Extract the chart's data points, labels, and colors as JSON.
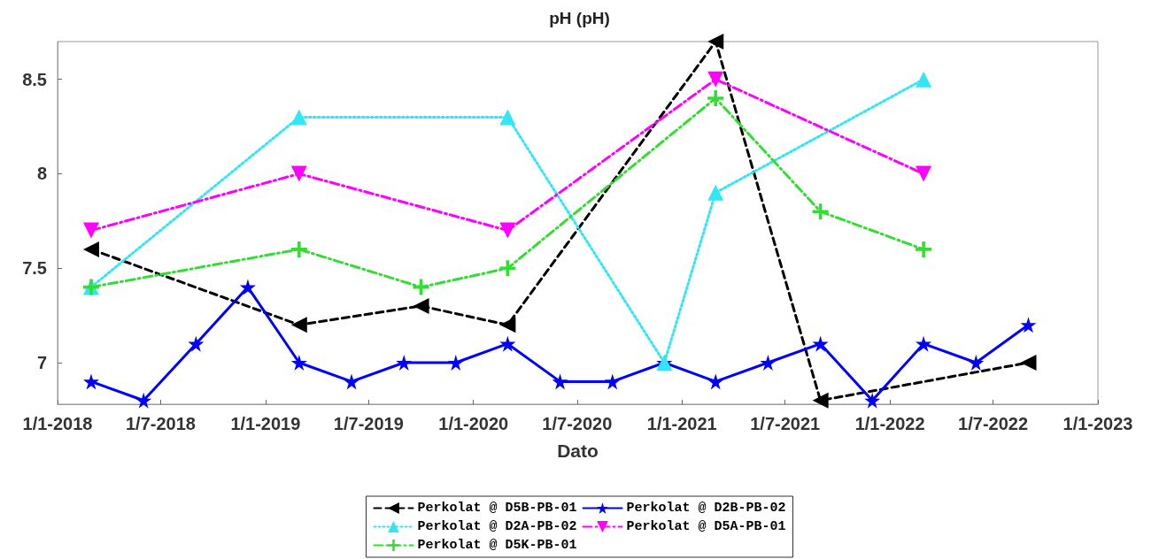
{
  "chart_data": {
    "type": "line",
    "title": "pH (pH)",
    "xlabel": "Dato",
    "xlim": [
      "2018-01-01",
      "2023-01-01"
    ],
    "xticks": [
      {
        "value": "2018-01-01",
        "label": "1/1-2018"
      },
      {
        "value": "2018-07-01",
        "label": "1/7-2018"
      },
      {
        "value": "2019-01-01",
        "label": "1/1-2019"
      },
      {
        "value": "2019-07-01",
        "label": "1/7-2019"
      },
      {
        "value": "2020-01-01",
        "label": "1/1-2020"
      },
      {
        "value": "2020-07-01",
        "label": "1/7-2020"
      },
      {
        "value": "2021-01-01",
        "label": "1/1-2021"
      },
      {
        "value": "2021-07-01",
        "label": "1/7-2021"
      },
      {
        "value": "2022-01-01",
        "label": "1/1-2022"
      },
      {
        "value": "2022-07-01",
        "label": "1/7-2022"
      },
      {
        "value": "2023-01-01",
        "label": "1/1-2023"
      }
    ],
    "ylim": [
      6.78,
      8.7
    ],
    "yticks": [
      7,
      7.5,
      8,
      8.5
    ],
    "grid": false,
    "legend": "bottom",
    "series": [
      {
        "name": "Perkolat @ D5B-PB-01",
        "color": "#000000",
        "marker": "triangle-left",
        "line_style": "dashed",
        "x": [
          "2018-03-01",
          "2019-03-01",
          "2019-10-01",
          "2020-03-01",
          "2021-03-01",
          "2021-09-01",
          "2022-09-01"
        ],
        "values": [
          7.6,
          7.2,
          7.3,
          7.2,
          8.7,
          6.8,
          7.0
        ]
      },
      {
        "name": "Perkolat @ D2B-PB-02",
        "color": "#0000ff",
        "marker": "star",
        "line_style": "solid",
        "x": [
          "2018-03-01",
          "2018-06-01",
          "2018-09-01",
          "2018-12-01",
          "2019-03-01",
          "2019-06-01",
          "2019-09-01",
          "2019-12-01",
          "2020-03-01",
          "2020-06-01",
          "2020-09-01",
          "2020-12-01",
          "2021-03-01",
          "2021-06-01",
          "2021-09-01",
          "2021-12-01",
          "2022-03-01",
          "2022-06-01",
          "2022-09-01"
        ],
        "values": [
          6.9,
          6.8,
          7.1,
          7.4,
          7.0,
          6.9,
          7.0,
          7.0,
          7.1,
          6.9,
          6.9,
          7.0,
          6.9,
          7.0,
          7.1,
          6.8,
          7.1,
          7.0,
          7.2
        ]
      },
      {
        "name": "Perkolat @ D2A-PB-02",
        "color": "#33e6f5",
        "marker": "triangle",
        "line_style": "dotted",
        "x": [
          "2018-03-01",
          "2019-03-01",
          "2020-03-01",
          "2020-12-01",
          "2021-03-01",
          "2022-03-01"
        ],
        "values": [
          7.4,
          8.3,
          8.3,
          7.0,
          7.9,
          8.5
        ]
      },
      {
        "name": "Perkolat @ D5A-PB-01",
        "color": "#ff00ff",
        "marker": "triangle-down",
        "line_style": "dashdot",
        "x": [
          "2018-03-01",
          "2019-03-01",
          "2020-03-01",
          "2021-03-01",
          "2022-03-01"
        ],
        "values": [
          7.7,
          8.0,
          7.7,
          8.5,
          8.0
        ]
      },
      {
        "name": "Perkolat @ D5K-PB-01",
        "color": "#33dd33",
        "marker": "cross",
        "line_style": "dashdot",
        "x": [
          "2018-03-01",
          "2019-03-01",
          "2019-10-01",
          "2020-03-01",
          "2021-03-01",
          "2021-09-01",
          "2022-03-01"
        ],
        "values": [
          7.4,
          7.6,
          7.4,
          7.5,
          8.4,
          7.8,
          7.6
        ]
      }
    ]
  }
}
